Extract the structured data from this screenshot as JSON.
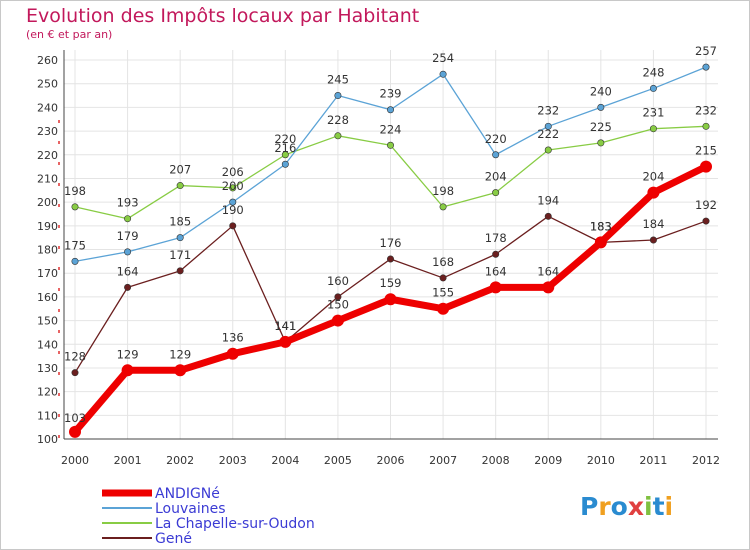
{
  "chart_data": {
    "type": "line",
    "title": "Evolution des Impôts locaux par Habitant",
    "subtitle": "(en € et par an)",
    "x": [
      "2000",
      "2001",
      "2002",
      "2003",
      "2004",
      "2005",
      "2006",
      "2007",
      "2008",
      "2009",
      "2010",
      "2011",
      "2012"
    ],
    "ylim": [
      100,
      260
    ],
    "yticks": [
      100,
      110,
      120,
      130,
      140,
      150,
      160,
      170,
      180,
      190,
      200,
      210,
      220,
      230,
      240,
      250,
      260
    ],
    "grid": true,
    "legend_position": "bottom-left",
    "series": [
      {
        "name": "ANDIGNé",
        "color": "#ee0000",
        "values": [
          103,
          129,
          129,
          136,
          141,
          150,
          159,
          155,
          164,
          164,
          183,
          204,
          215
        ]
      },
      {
        "name": "Louvaines",
        "color": "#5ba3d6",
        "values": [
          175,
          179,
          185,
          200,
          216,
          245,
          239,
          254,
          220,
          232,
          240,
          248,
          257
        ]
      },
      {
        "name": "La Chapelle-sur-Oudon",
        "color": "#88cc44",
        "values": [
          198,
          193,
          207,
          206,
          220,
          228,
          224,
          198,
          204,
          222,
          225,
          231,
          232
        ]
      },
      {
        "name": "Gené",
        "color": "#6b1f1f",
        "values": [
          128,
          164,
          171,
          190,
          141,
          160,
          176,
          168,
          178,
          194,
          183,
          184,
          192
        ]
      }
    ]
  },
  "legend_text_color": "#3b3bd4",
  "logo": {
    "text": "Proxiti",
    "letters": [
      "P",
      "r",
      "o",
      "x",
      "i",
      "t",
      "i"
    ],
    "colors": [
      "#2a8bd0",
      "#f0a020",
      "#2a8bd0",
      "#e04040",
      "#80c040",
      "#2a8bd0",
      "#f0a020"
    ]
  }
}
